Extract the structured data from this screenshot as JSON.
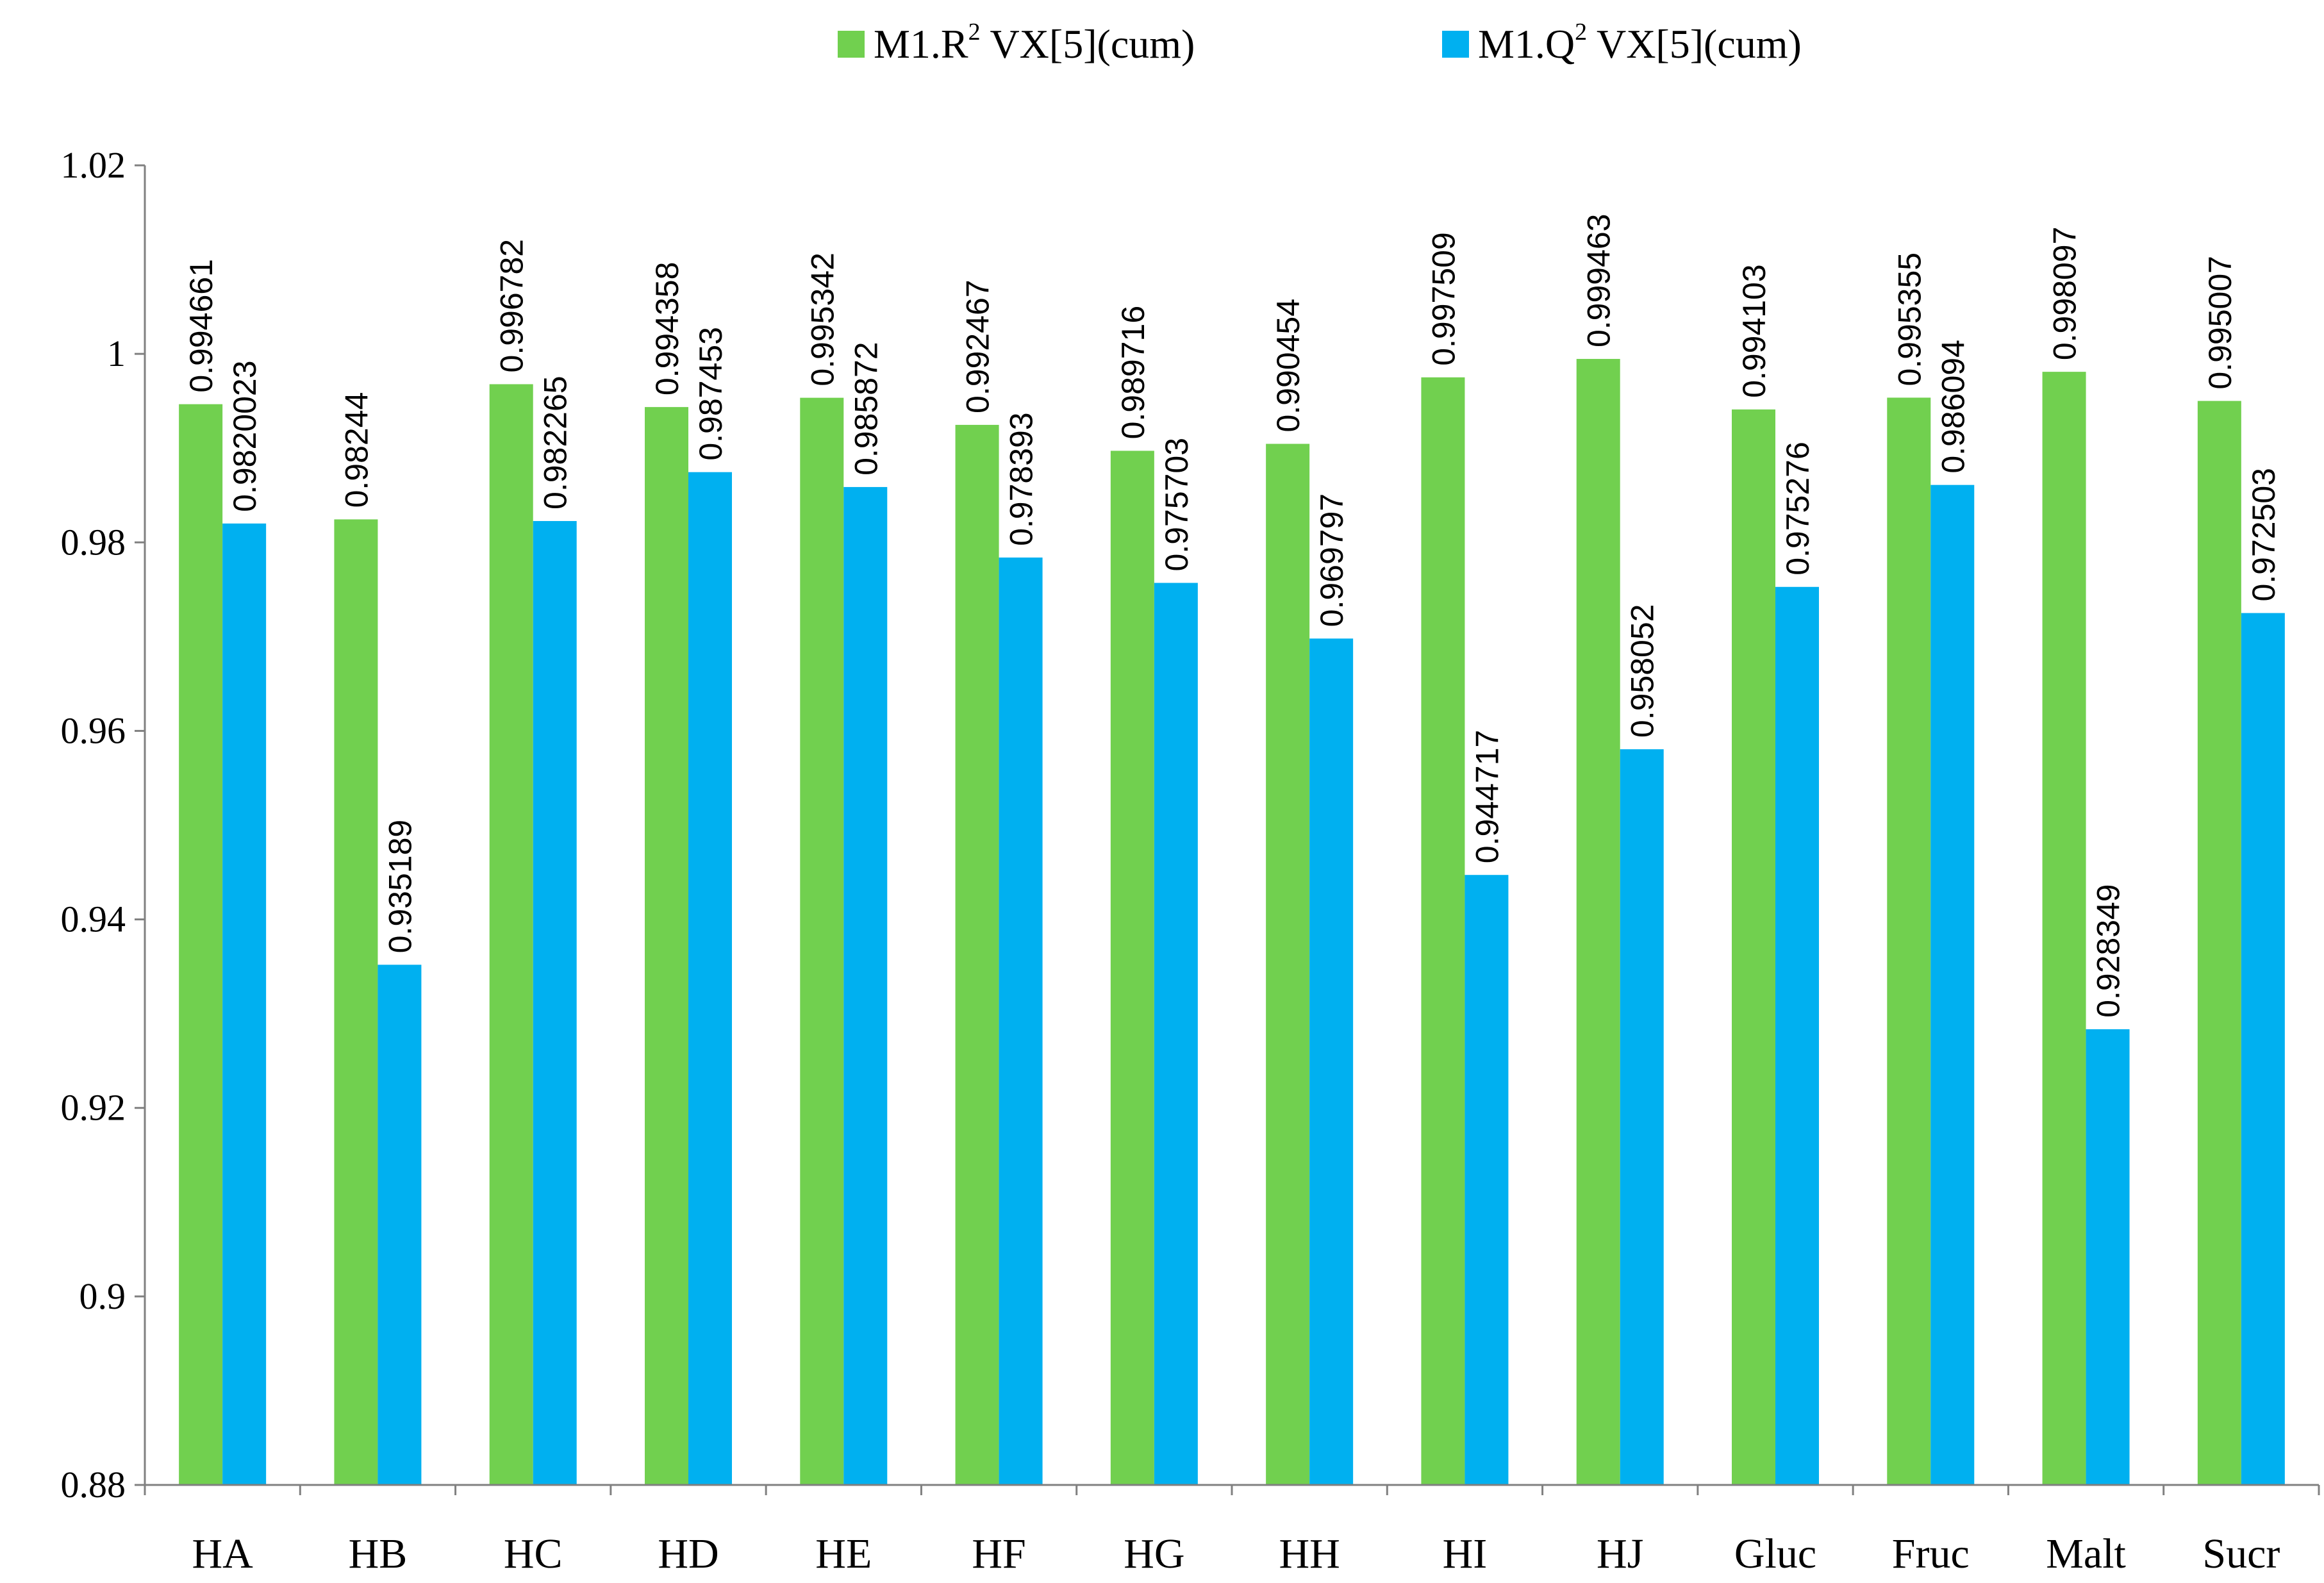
{
  "chart_data": {
    "type": "bar",
    "categories": [
      "HA",
      "HB",
      "HC",
      "HD",
      "HE",
      "HF",
      "HG",
      "HH",
      "HI",
      "HJ",
      "Gluc",
      "Fruc",
      "Malt",
      "Sucr"
    ],
    "series": [
      {
        "name": "M1.R",
        "superscript": "2",
        "suffix": "VX[5](cum)",
        "color": "#71D04F",
        "values": [
          0.994661,
          0.98244,
          0.996782,
          0.994358,
          0.995342,
          0.992467,
          0.989716,
          0.990454,
          0.997509,
          0.999463,
          0.994103,
          0.995355,
          0.998097,
          0.995007
        ],
        "labels": [
          "0.994661",
          "0.98244",
          "0.996782",
          "0.994358",
          "0.995342",
          "0.992467",
          "0.989716",
          "0.990454",
          "0.997509",
          "0.999463",
          "0.994103",
          "0.995355",
          "0.998097",
          "0.995007"
        ]
      },
      {
        "name": "M1.Q",
        "superscript": "2",
        "suffix": "VX[5](cum)",
        "color": "#00B0F0",
        "values": [
          0.9820023,
          0.935189,
          0.982265,
          0.987453,
          0.985872,
          0.978393,
          0.975703,
          0.969797,
          0.944717,
          0.958052,
          0.975276,
          0.986094,
          0.928349,
          0.972503
        ],
        "labels": [
          "0.9820023",
          "0.935189",
          "0.982265",
          "0.987453",
          "0.985872",
          "0.978393",
          "0.975703",
          "0.969797",
          "0.944717",
          "0.958052",
          "0.975276",
          "0.986094",
          "0.928349",
          "0.972503"
        ]
      }
    ],
    "ylim": [
      0.88,
      1.02
    ],
    "yticks": [
      "0.88",
      "0.9",
      "0.92",
      "0.94",
      "0.96",
      "0.98",
      "1",
      "1.02"
    ],
    "title": "",
    "xlabel": "",
    "ylabel": "",
    "grid": false,
    "legend": "top-center"
  }
}
